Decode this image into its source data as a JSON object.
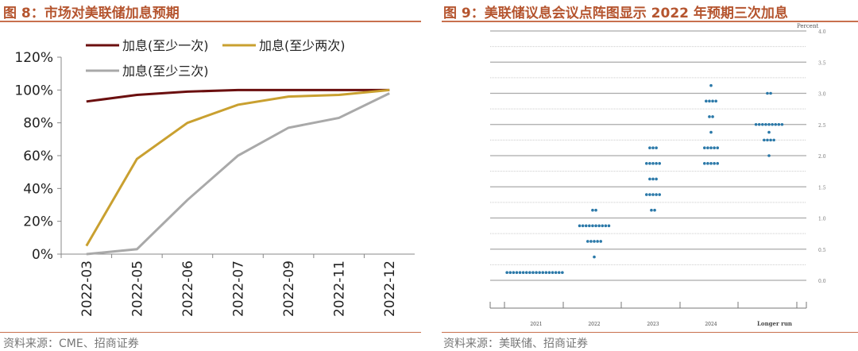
{
  "left": {
    "title": "图 8：市场对美联储加息预期",
    "source": "资料来源：CME、招商证券"
  },
  "right": {
    "title": "图 9：美联储议息会议点阵图显示 2022 年预期三次加息",
    "source": "资料来源：美联储、招商证券"
  },
  "chart_data": [
    {
      "type": "line",
      "title": "市场对美联储加息预期",
      "categories": [
        "2022-03",
        "2022-05",
        "2022-06",
        "2022-07",
        "2022-09",
        "2022-11",
        "2022-12"
      ],
      "yticks": [
        "0%",
        "20%",
        "40%",
        "60%",
        "80%",
        "100%",
        "120%"
      ],
      "ylim": [
        0,
        120
      ],
      "legend": "top",
      "series": [
        {
          "name": "加息(至少一次)",
          "color": "#6b0f0f",
          "values": [
            93,
            97,
            99,
            100,
            100,
            100,
            100
          ]
        },
        {
          "name": "加息(至少两次)",
          "color": "#c9a030",
          "values": [
            5,
            58,
            80,
            91,
            96,
            97,
            100
          ]
        },
        {
          "name": "加息(至少三次)",
          "color": "#a9a9a9",
          "values": [
            0,
            3,
            33,
            60,
            77,
            83,
            98
          ]
        }
      ]
    },
    {
      "type": "scatter",
      "title": "美联储议息会议点阵图",
      "ylabel": "Percent",
      "ylim": [
        0,
        4
      ],
      "yticks": [
        "0.0",
        "0.5",
        "1.0",
        "1.5",
        "2.0",
        "2.5",
        "3.0",
        "3.5",
        "4.0"
      ],
      "categories": [
        "2021",
        "2022",
        "2023",
        "2024",
        "Longer run"
      ],
      "color": "#2a78a8",
      "dots": [
        [
          {
            "rate": 0.125,
            "count": 18
          }
        ],
        [
          {
            "rate": 0.375,
            "count": 1
          },
          {
            "rate": 0.625,
            "count": 5
          },
          {
            "rate": 0.875,
            "count": 10
          },
          {
            "rate": 1.125,
            "count": 2
          }
        ],
        [
          {
            "rate": 1.125,
            "count": 2
          },
          {
            "rate": 1.375,
            "count": 5
          },
          {
            "rate": 1.625,
            "count": 3
          },
          {
            "rate": 1.875,
            "count": 5
          },
          {
            "rate": 2.125,
            "count": 3
          }
        ],
        [
          {
            "rate": 1.875,
            "count": 5
          },
          {
            "rate": 2.125,
            "count": 5
          },
          {
            "rate": 2.375,
            "count": 1
          },
          {
            "rate": 2.625,
            "count": 2
          },
          {
            "rate": 2.875,
            "count": 4
          },
          {
            "rate": 3.125,
            "count": 1
          }
        ],
        [
          {
            "rate": 2.0,
            "count": 1
          },
          {
            "rate": 2.25,
            "count": 4
          },
          {
            "rate": 2.375,
            "count": 1
          },
          {
            "rate": 2.5,
            "count": 9
          },
          {
            "rate": 3.0,
            "count": 2
          }
        ]
      ]
    }
  ]
}
